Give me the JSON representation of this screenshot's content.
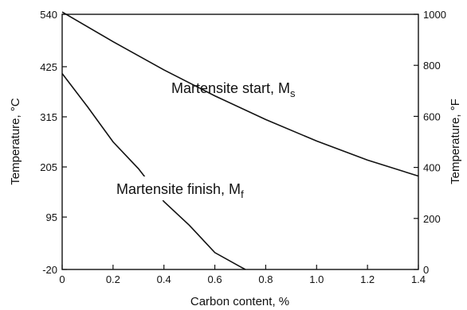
{
  "chart_data": {
    "type": "line",
    "xlabel": "Carbon content, %",
    "ylabel_left": "Temperature, °C",
    "ylabel_right": "Temperature, °F",
    "xlim": [
      0,
      1.4
    ],
    "ylim_c": [
      -20,
      540
    ],
    "ylim_f": [
      0,
      1000
    ],
    "x_ticks": [
      "0",
      "0.2",
      "0.4",
      "0.6",
      "0.8",
      "1.0",
      "1.2",
      "1.4"
    ],
    "x_tick_values": [
      0,
      0.2,
      0.4,
      0.6,
      0.8,
      1.0,
      1.2,
      1.4
    ],
    "y_ticks_c": [
      "540",
      "425",
      "315",
      "205",
      "95",
      "-20"
    ],
    "y_tick_values_c": [
      540,
      425,
      315,
      205,
      95,
      -20
    ],
    "y_ticks_f": [
      "1000",
      "800",
      "600",
      "400",
      "200",
      "0"
    ],
    "y_tick_values_f": [
      1000,
      800,
      600,
      400,
      200,
      0
    ],
    "grid": false,
    "series": [
      {
        "name": "Martensite start, Ms",
        "x": [
          0,
          0.2,
          0.4,
          0.6,
          0.8,
          1.0,
          1.2,
          1.4
        ],
        "y": [
          545,
          480,
          418,
          361,
          309,
          262,
          220,
          185
        ]
      },
      {
        "name": "Martensite finish, Mf",
        "x": [
          0,
          0.1,
          0.2,
          0.3,
          0.4,
          0.5,
          0.6,
          0.7,
          0.72
        ],
        "y": [
          410,
          337,
          260,
          201,
          129,
          77,
          17,
          -14,
          -20
        ]
      }
    ],
    "annotations": [
      {
        "main": "Martensite start, M",
        "sub": "s"
      },
      {
        "main": "Martensite finish, M",
        "sub": "f"
      }
    ]
  }
}
